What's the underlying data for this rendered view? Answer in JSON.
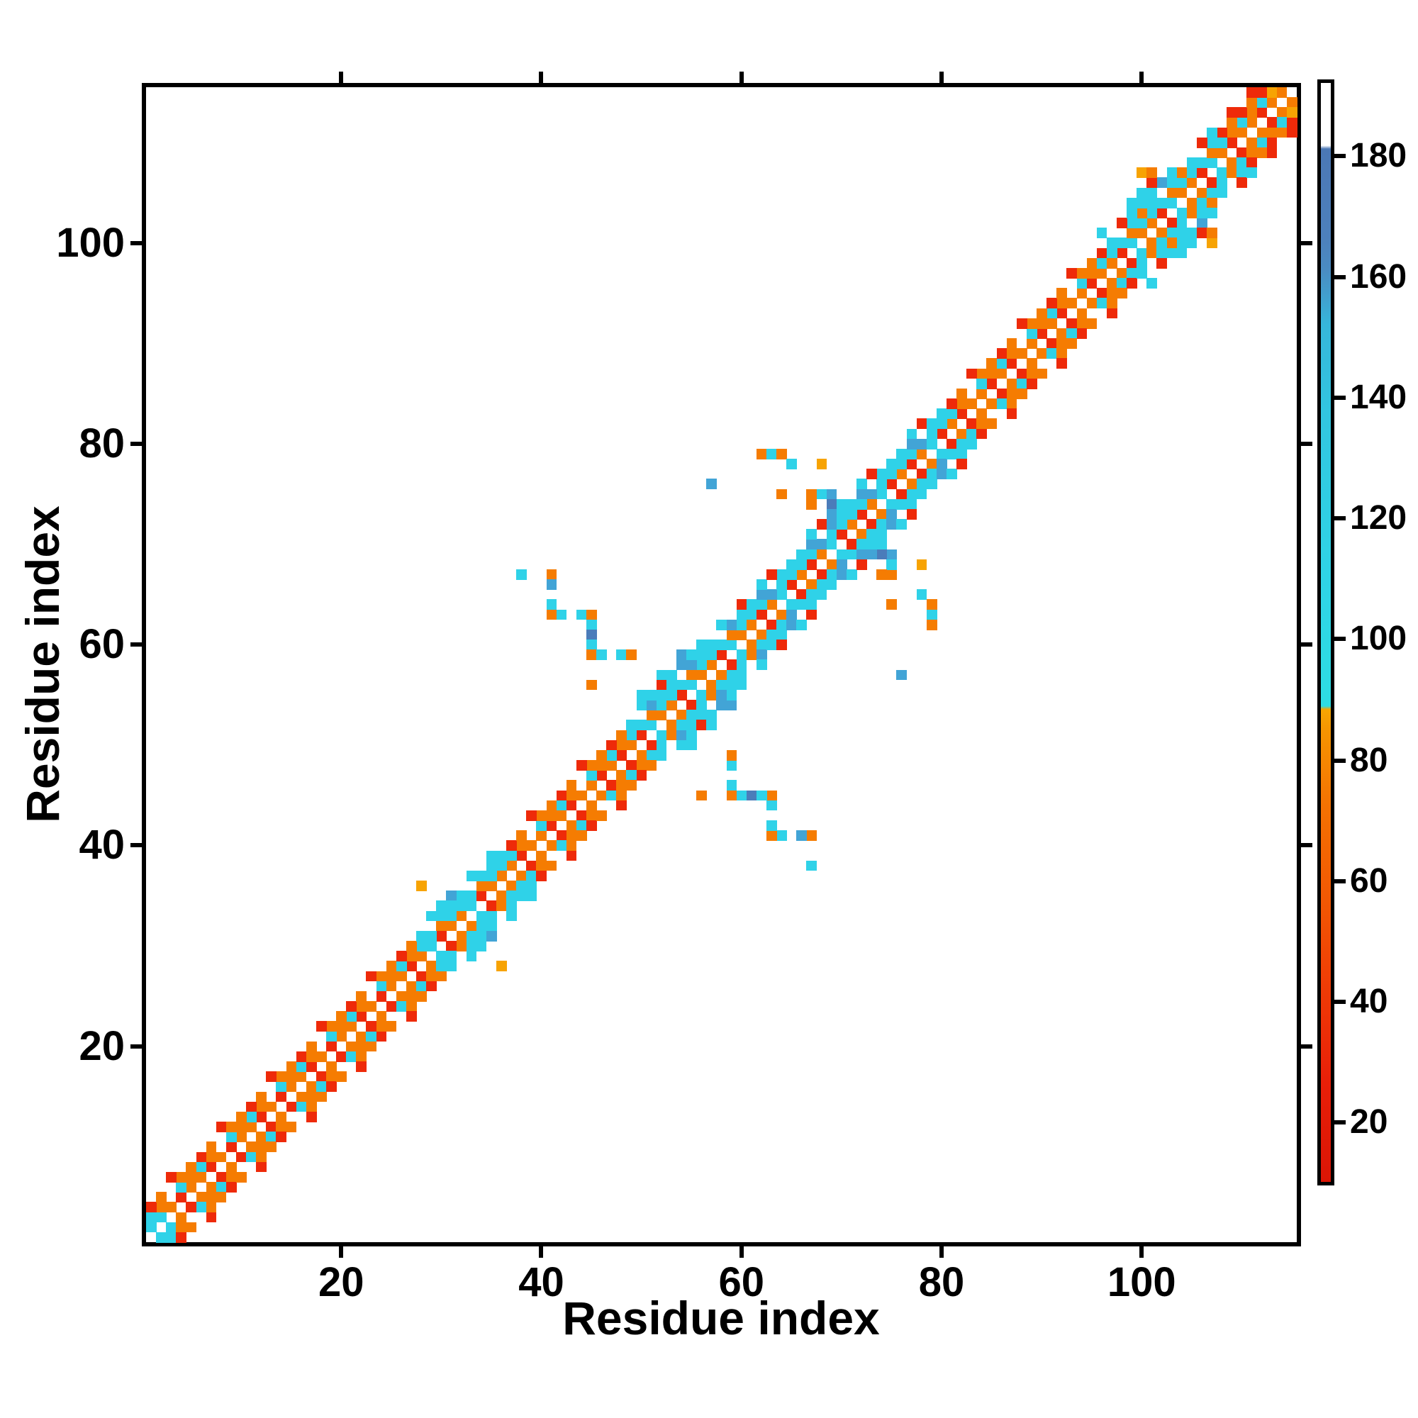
{
  "axes": {
    "x": {
      "title": "Residue index",
      "tick_values": [
        20,
        40,
        60,
        80,
        100
      ]
    },
    "y": {
      "title": "Residue index",
      "tick_values": [
        20,
        40,
        60,
        80,
        100
      ]
    }
  },
  "colorbar": {
    "value_range": [
      10,
      192
    ],
    "tick_values": [
      20,
      40,
      60,
      80,
      100,
      120,
      140,
      160,
      180
    ],
    "ticks": [
      {
        "label": "180",
        "frac_from_top": 0.0695
      },
      {
        "label": "160",
        "frac_from_top": 0.179
      },
      {
        "label": "140",
        "frac_from_top": 0.288
      },
      {
        "label": "120",
        "frac_from_top": 0.397
      },
      {
        "label": "100",
        "frac_from_top": 0.506
      },
      {
        "label": "80",
        "frac_from_top": 0.616
      },
      {
        "label": "60",
        "frac_from_top": 0.725
      },
      {
        "label": "40",
        "frac_from_top": 0.834
      },
      {
        "label": "20",
        "frac_from_top": 0.9432
      }
    ],
    "gradient_stops": [
      [
        "#db1505",
        0.0
      ],
      [
        "#e81f08",
        0.09
      ],
      [
        "#ef3906",
        0.17
      ],
      [
        "#f25603",
        0.25
      ],
      [
        "#f57102",
        0.34
      ],
      [
        "#f69401",
        0.41
      ],
      [
        "#f7a602",
        0.43
      ],
      [
        "#2eddE3",
        0.433
      ],
      [
        "#2fd4e6",
        0.55
      ],
      [
        "#32c6e0",
        0.7
      ],
      [
        "#36b6da",
        0.78
      ],
      [
        "#3fa4d1",
        0.8
      ],
      [
        "#4a8cc3",
        0.83
      ],
      [
        "#4d80bc",
        0.86
      ],
      [
        "#4b78b5",
        0.94
      ],
      [
        "#ffffff",
        0.943
      ],
      [
        "#ffffff",
        1.0
      ]
    ]
  },
  "chart_data": {
    "type": "heatmap",
    "title": "",
    "xlabel": "Residue index",
    "ylabel": "Residue index",
    "n_residues": 115,
    "x_range": [
      1,
      115
    ],
    "y_range": [
      1,
      115
    ],
    "symmetric": true,
    "diagonal_color": "W",
    "palette": {
      "R": "#ee2a09",
      "O": "#f57c02",
      "A": "#f7a303",
      "C": "#2fd2e8",
      "S": "#42a4d6",
      "B": "#4b7cba",
      "W": "#ffffff"
    },
    "palette_value_ranges": {
      "R": "< 40",
      "O": "40 - 80",
      "A": "80 - 87",
      "C": "87 - 150",
      "S": "150 - 165",
      "B": "165 - 185",
      "W": "no contact"
    },
    "band_segments": {
      "1": [
        [
          1,
          2,
          "C"
        ],
        [
          3,
          27,
          "OROOR"
        ],
        [
          28,
          36,
          "OCRO"
        ],
        [
          37,
          48,
          "OROOR"
        ],
        [
          49,
          60,
          "ORCO"
        ],
        [
          61,
          80,
          "OROCR"
        ],
        [
          81,
          96,
          "OROOR"
        ],
        [
          97,
          107,
          "ORCO"
        ],
        [
          108,
          114,
          "ORO"
        ]
      ],
      "2": [
        [
          1,
          27,
          "COWCO"
        ],
        [
          28,
          36,
          "CCOC"
        ],
        [
          37,
          48,
          "COWCO"
        ],
        [
          49,
          60,
          "CCOC"
        ],
        [
          61,
          80,
          "CCSCC"
        ],
        [
          81,
          96,
          "COWCO"
        ],
        [
          97,
          107,
          "CCOC"
        ],
        [
          108,
          113,
          "CO"
        ]
      ],
      "3": [
        [
          1,
          27,
          "ROWOO"
        ],
        [
          28,
          36,
          "CWCC"
        ],
        [
          37,
          48,
          "ROWOO"
        ],
        [
          49,
          60,
          "CWSC"
        ],
        [
          61,
          80,
          "CSWCC"
        ],
        [
          81,
          96,
          "ROWOO"
        ],
        [
          97,
          107,
          "CWCO"
        ],
        [
          108,
          112,
          "RO"
        ]
      ],
      "4": [
        [
          1,
          27,
          "WWRWW"
        ],
        [
          28,
          36,
          "WCWC"
        ],
        [
          37,
          48,
          "WWRWW"
        ],
        [
          49,
          60,
          "WCWR"
        ],
        [
          61,
          80,
          "WCRWW"
        ],
        [
          81,
          96,
          "WWRWW"
        ],
        [
          97,
          107,
          "WRCW"
        ],
        [
          108,
          111,
          "WR"
        ]
      ]
    },
    "long_range_contacts": [
      [
        28,
        36,
        "A"
      ],
      [
        30,
        34,
        "C"
      ],
      [
        31,
        35,
        "S"
      ],
      [
        32,
        35,
        "C"
      ],
      [
        33,
        35,
        "C"
      ],
      [
        31,
        34,
        "C"
      ],
      [
        38,
        67,
        "C"
      ],
      [
        41,
        67,
        "O"
      ],
      [
        41,
        66,
        "S"
      ],
      [
        41,
        64,
        "C"
      ],
      [
        41,
        63,
        "O"
      ],
      [
        42,
        63,
        "C"
      ],
      [
        44,
        63,
        "C"
      ],
      [
        45,
        63,
        "O"
      ],
      [
        45,
        62,
        "C"
      ],
      [
        45,
        61,
        "B"
      ],
      [
        45,
        60,
        "C"
      ],
      [
        45,
        59,
        "O"
      ],
      [
        46,
        59,
        "C"
      ],
      [
        48,
        59,
        "C"
      ],
      [
        49,
        59,
        "O"
      ],
      [
        45,
        56,
        "O"
      ],
      [
        50,
        54,
        "C"
      ],
      [
        50,
        55,
        "C"
      ],
      [
        51,
        55,
        "C"
      ],
      [
        52,
        57,
        "C"
      ],
      [
        53,
        57,
        "C"
      ],
      [
        54,
        58,
        "S"
      ],
      [
        54,
        59,
        "S"
      ],
      [
        55,
        59,
        "C"
      ],
      [
        56,
        60,
        "C"
      ],
      [
        57,
        60,
        "C"
      ],
      [
        57,
        76,
        "S"
      ],
      [
        62,
        79,
        "O"
      ],
      [
        63,
        79,
        "C"
      ],
      [
        64,
        79,
        "O"
      ],
      [
        65,
        78,
        "C"
      ],
      [
        68,
        78,
        "A"
      ],
      [
        64,
        75,
        "O"
      ],
      [
        67,
        75,
        "O"
      ],
      [
        68,
        75,
        "C"
      ],
      [
        69,
        75,
        "S"
      ],
      [
        67,
        74,
        "O"
      ],
      [
        69,
        74,
        "B"
      ],
      [
        70,
        74,
        "C"
      ],
      [
        69,
        72,
        "S"
      ],
      [
        69,
        73,
        "S"
      ],
      [
        96,
        101,
        "C"
      ],
      [
        99,
        104,
        "C"
      ],
      [
        100,
        104,
        "C"
      ],
      [
        100,
        105,
        "C"
      ],
      [
        101,
        105,
        "C"
      ],
      [
        102,
        106,
        "S"
      ],
      [
        103,
        106,
        "C"
      ],
      [
        101,
        106,
        "R"
      ],
      [
        100,
        107,
        "A"
      ],
      [
        101,
        107,
        "O"
      ],
      [
        113,
        115,
        "A"
      ]
    ],
    "legend_position": "right-colorbar",
    "grid": false
  }
}
